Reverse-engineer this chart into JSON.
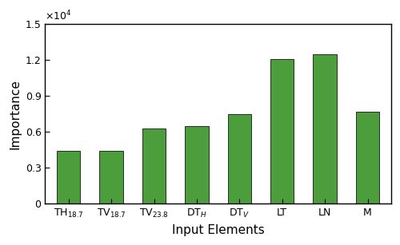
{
  "categories": [
    "TH$_{18.7}$",
    "TV$_{18.7}$",
    "TV$_{23.8}$",
    "DT$_{H}$",
    "DT$_{V}$",
    "LT",
    "LN",
    "M"
  ],
  "values": [
    4400,
    4400,
    6300,
    6450,
    7500,
    12100,
    12500,
    7700
  ],
  "bar_color": "#4c9e3c",
  "xlabel": "Input Elements",
  "ylabel": "Importance",
  "ylim": [
    0,
    15000
  ],
  "yticks": [
    0,
    3000,
    6000,
    9000,
    12000,
    15000
  ],
  "ytick_labels": [
    "0",
    "0.3",
    "0.6",
    "0.9",
    "1.2",
    "1.5"
  ],
  "sci_label": "$\\times10^4$",
  "background_color": "#ffffff",
  "edge_color": "#2a2a2a",
  "xlabel_fontsize": 11,
  "ylabel_fontsize": 11,
  "tick_fontsize": 9
}
